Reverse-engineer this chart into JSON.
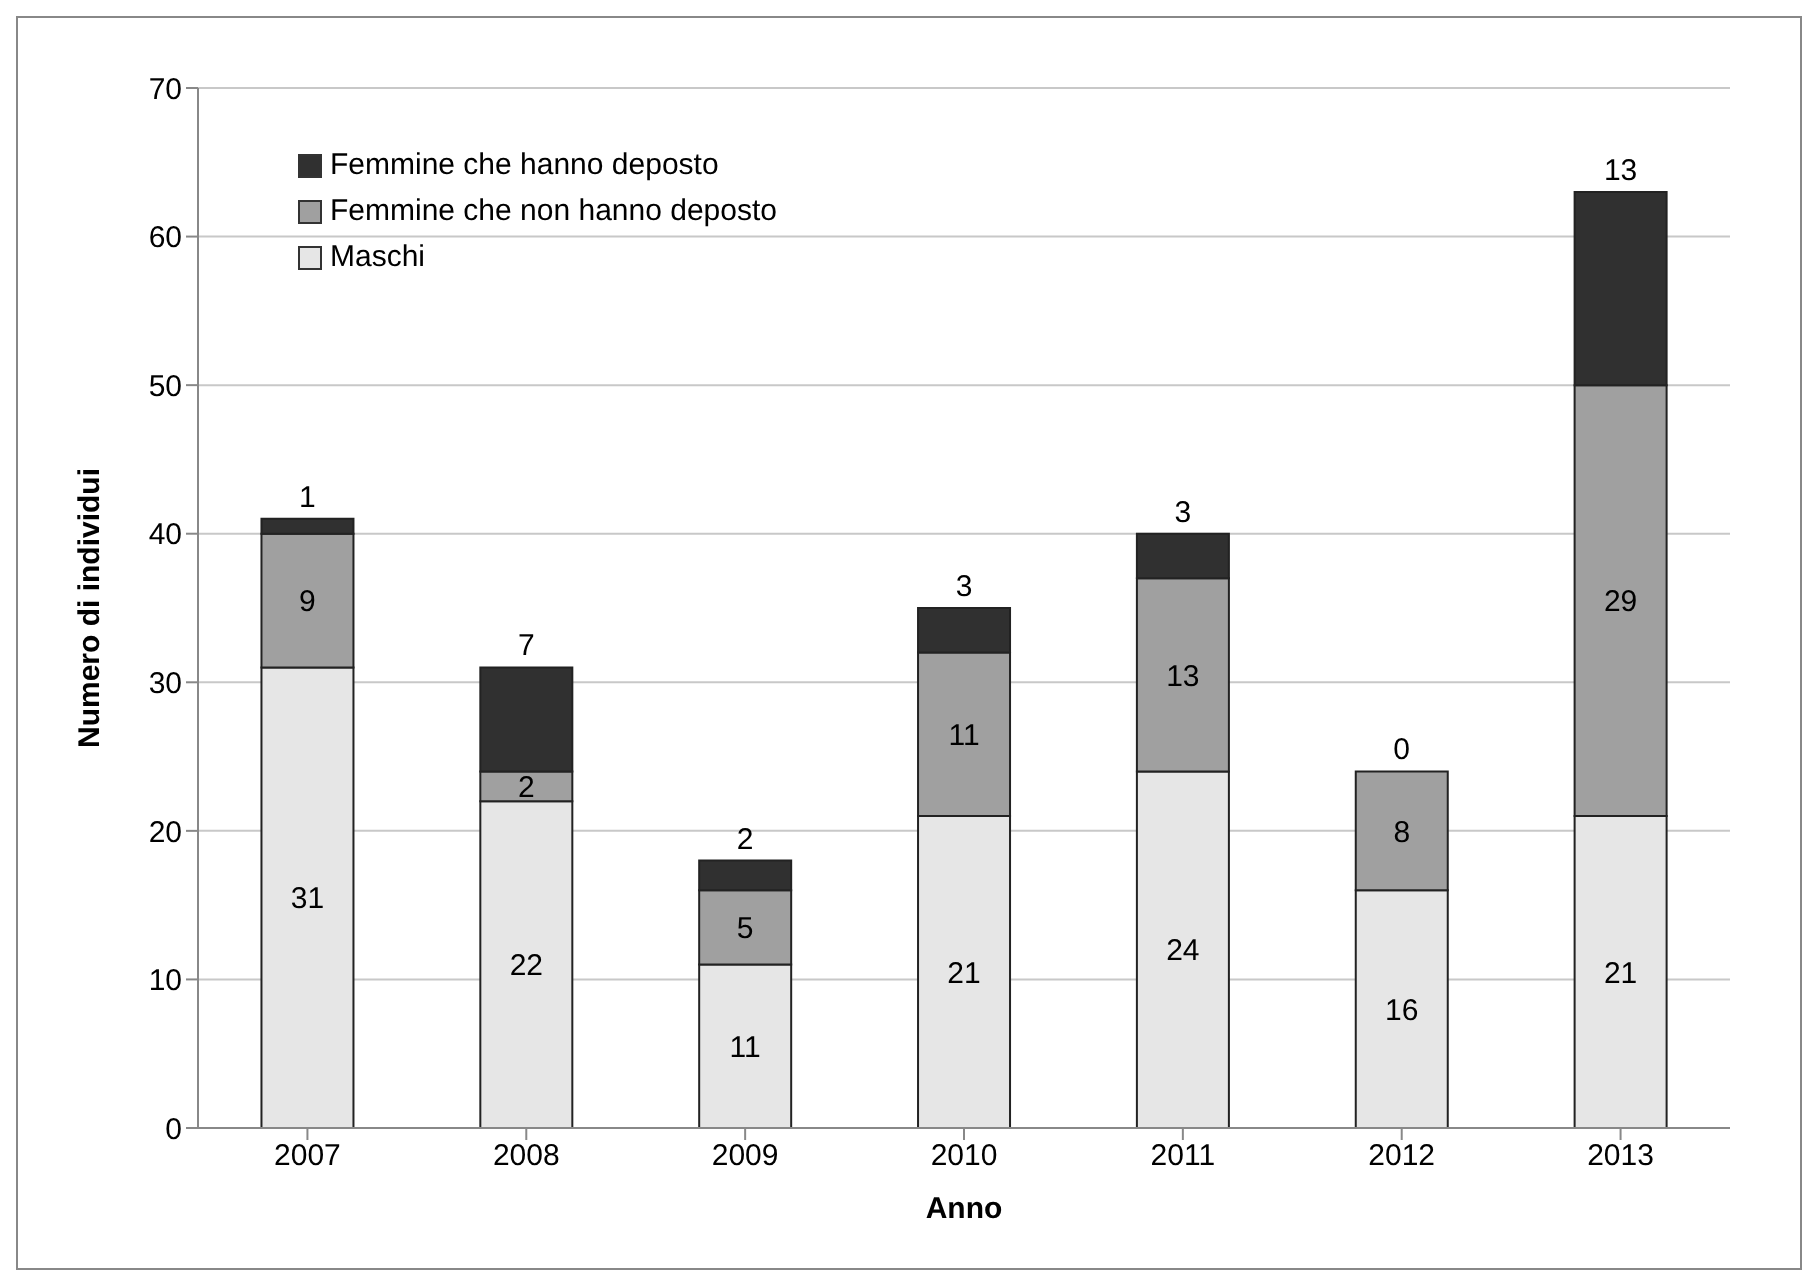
{
  "chart_data": {
    "type": "bar",
    "stacked": true,
    "xlabel": "Anno",
    "ylabel": "Numero di individui",
    "categories": [
      "2007",
      "2008",
      "2009",
      "2010",
      "2011",
      "2012",
      "2013"
    ],
    "series": [
      {
        "name": "Maschi",
        "color": "#e6e6e6",
        "values": [
          31,
          22,
          11,
          21,
          24,
          16,
          21
        ]
      },
      {
        "name": "Femmine che non hanno deposto",
        "color": "#a0a0a0",
        "values": [
          9,
          2,
          5,
          11,
          13,
          8,
          29
        ]
      },
      {
        "name": "Femmine che hanno deposto",
        "color": "#303030",
        "values": [
          1,
          7,
          2,
          3,
          3,
          0,
          13
        ]
      }
    ],
    "ylim": [
      0,
      70
    ],
    "yticks": [
      0,
      10,
      20,
      30,
      40,
      50,
      60,
      70
    ],
    "grid": "y",
    "legend": "top left",
    "data_labels": true
  }
}
